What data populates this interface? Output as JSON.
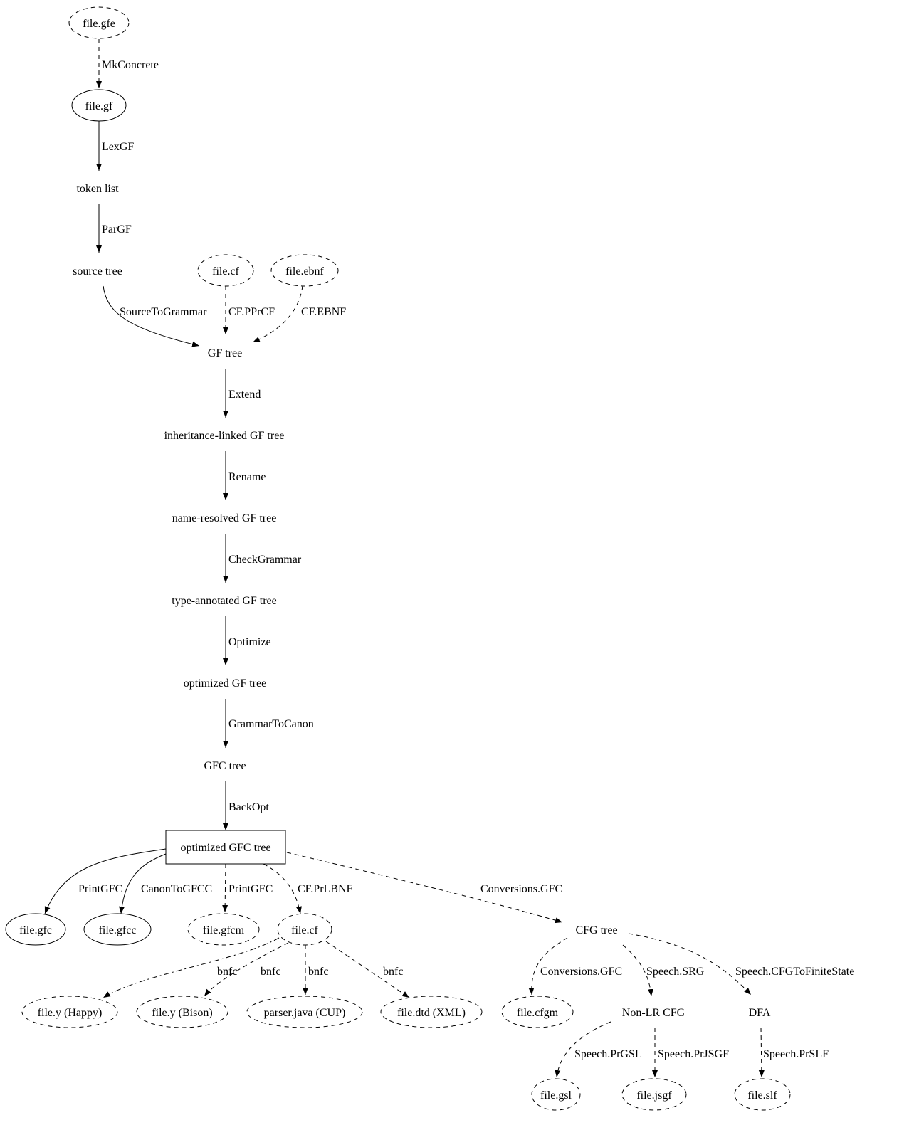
{
  "nodes": {
    "gfe": "file.gfe",
    "gf": "file.gf",
    "tokens": "token list",
    "source": "source tree",
    "cf_in": "file.cf",
    "ebnf": "file.ebnf",
    "gftree": "GF tree",
    "inherit": "inheritance-linked GF tree",
    "nameres": "name-resolved GF tree",
    "typeann": "type-annotated GF tree",
    "optgf": "optimized GF tree",
    "gfctree": "GFC tree",
    "optgfc": "optimized GFC tree",
    "gfc": "file.gfc",
    "gfcc": "file.gfcc",
    "gfcm": "file.gfcm",
    "cf_out": "file.cf",
    "cfgtree": "CFG tree",
    "happy": "file.y (Happy)",
    "bison": "file.y (Bison)",
    "cup": "parser.java (CUP)",
    "dtd": "file.dtd (XML)",
    "cfgm": "file.cfgm",
    "nonlr": "Non-LR CFG",
    "dfa": "DFA",
    "gsl": "file.gsl",
    "jsgf": "file.jsgf",
    "slf": "file.slf"
  },
  "edges": {
    "mkconcrete": "MkConcrete",
    "lexgf": "LexGF",
    "pargf": "ParGF",
    "sourcetogrammar": "SourceToGrammar",
    "ppr": "CF.PPrCF",
    "ebnf": "CF.EBNF",
    "extend": "Extend",
    "rename": "Rename",
    "check": "CheckGrammar",
    "optimize": "Optimize",
    "tocanon": "GrammarToCanon",
    "backopt": "BackOpt",
    "printgfc1": "PrintGFC",
    "canontogfcc": "CanonToGFCC",
    "printgfc2": "PrintGFC",
    "prlbnf": "CF.PrLBNF",
    "conv1": "Conversions.GFC",
    "bnfc1": "bnfc",
    "bnfc2": "bnfc",
    "bnfc3": "bnfc",
    "bnfc4": "bnfc",
    "conv2": "Conversions.GFC",
    "srg": "Speech.SRG",
    "fsm": "Speech.CFGToFiniteState",
    "prgsl": "Speech.PrGSL",
    "prjsgf": "Speech.PrJSGF",
    "prslf": "Speech.PrSLF"
  }
}
